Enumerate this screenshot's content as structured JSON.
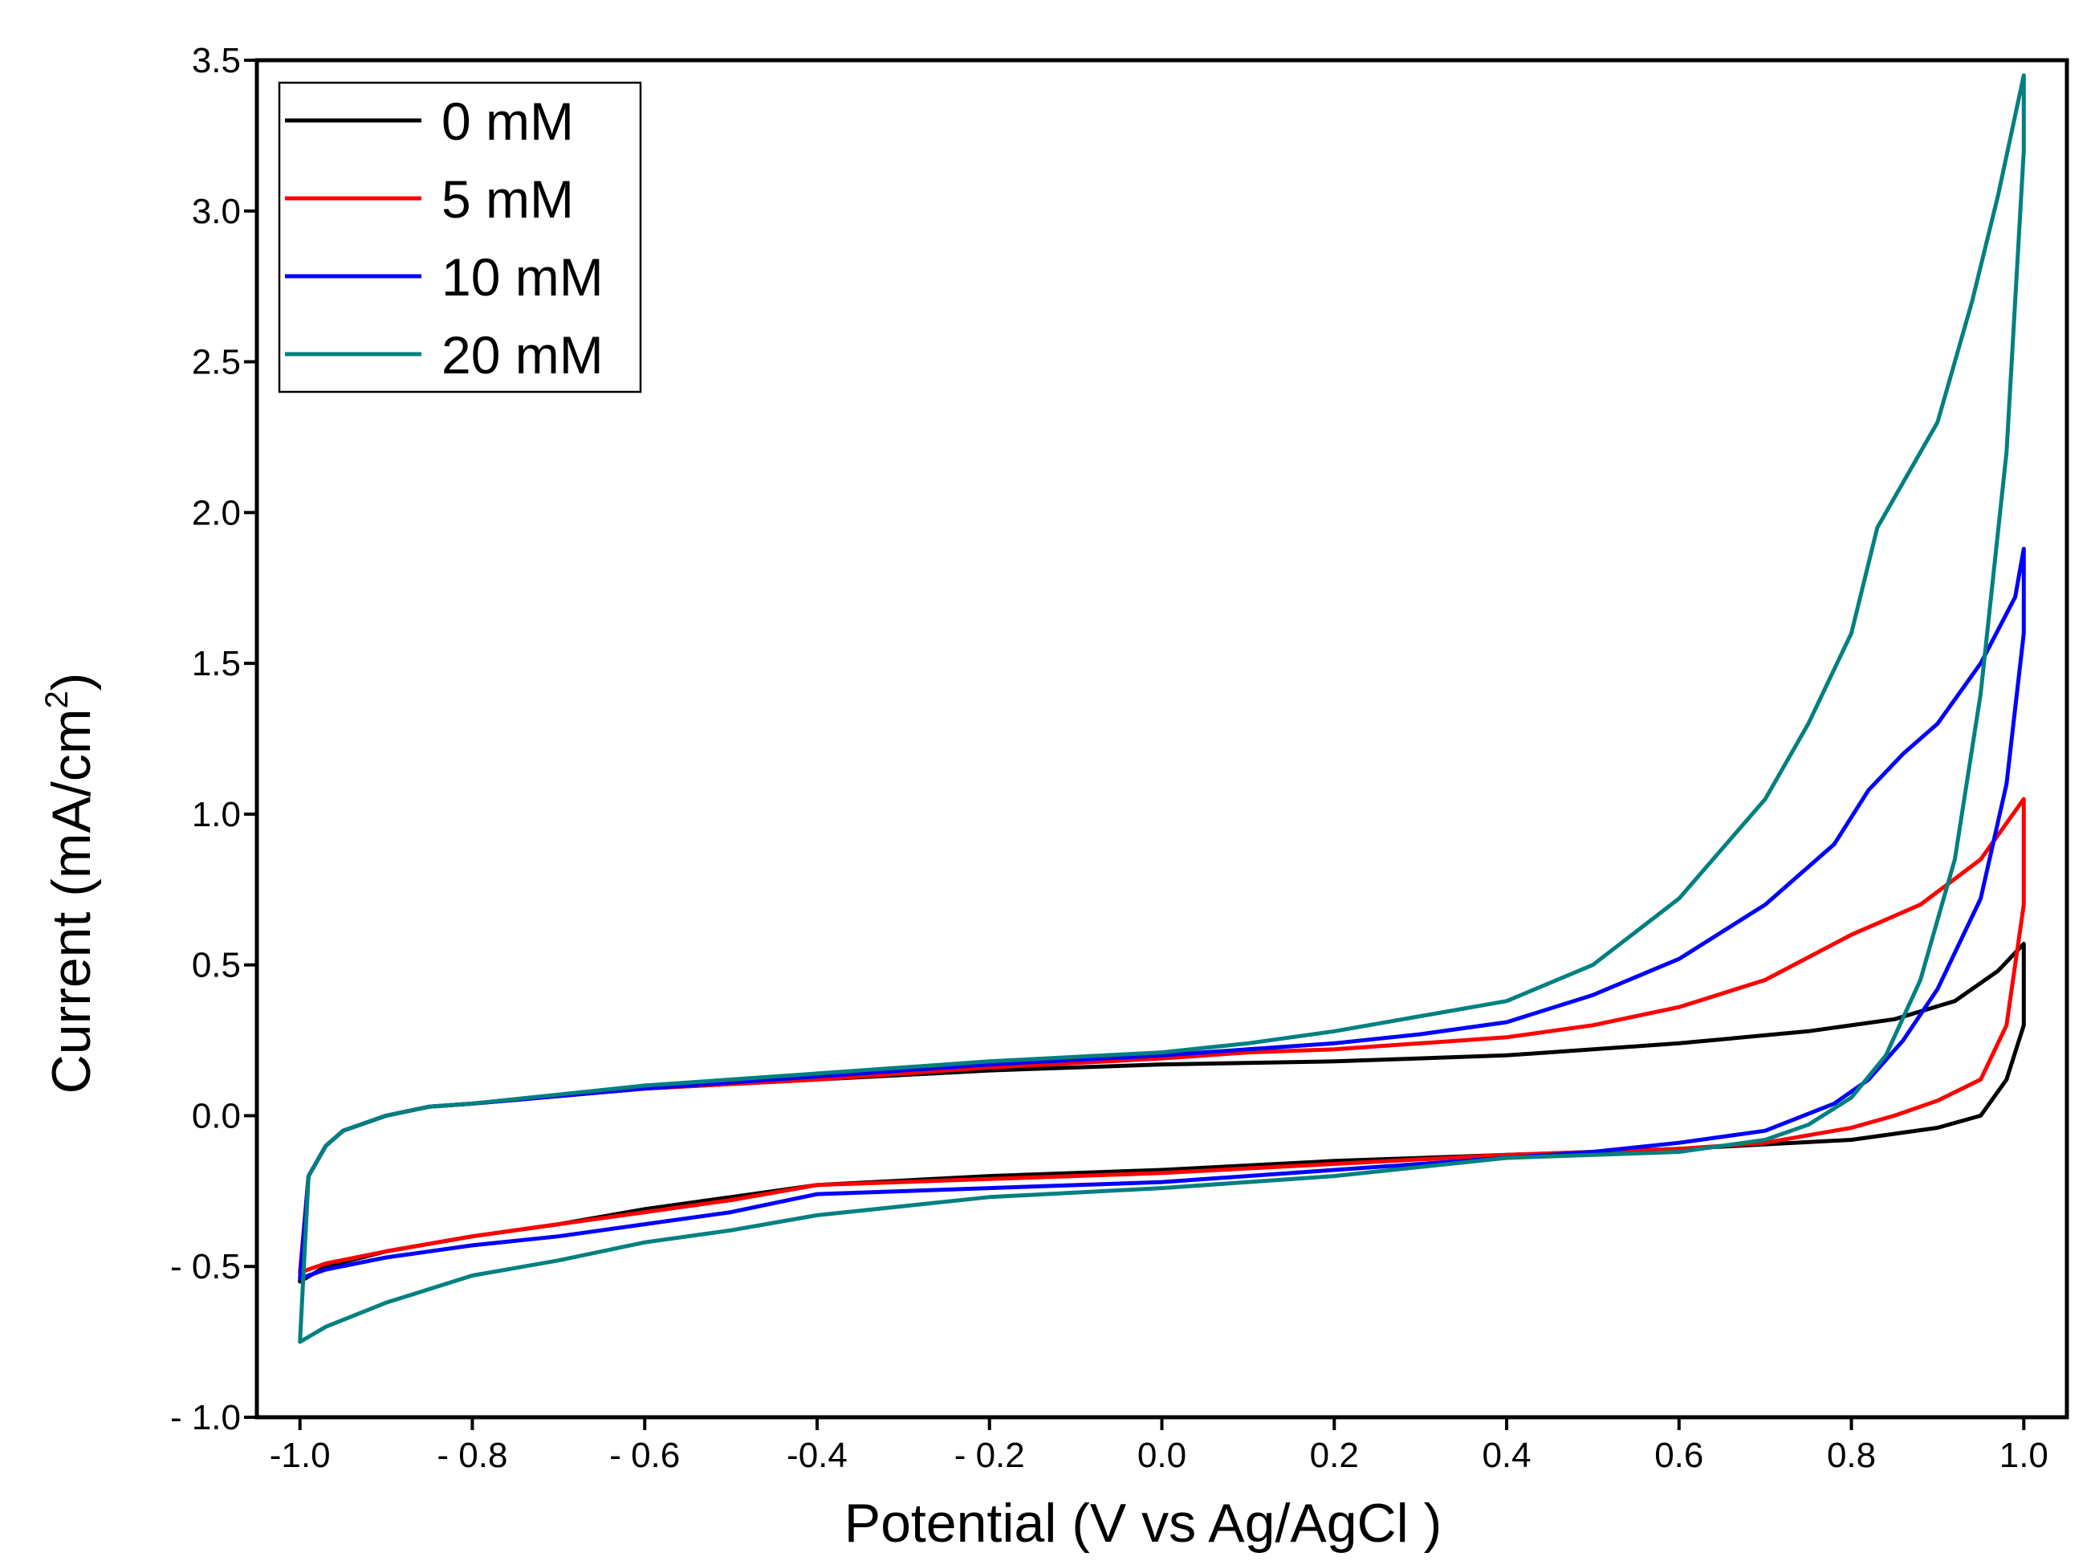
{
  "chart_data": {
    "type": "line",
    "title": "",
    "xlabel": "Potential (V vs Ag/AgCl )",
    "ylabel": "Current (mA/cm²)",
    "ylabel_main": "Current (mA/cm",
    "ylabel_sup": "2",
    "ylabel_close": ")",
    "xlim": [
      -1.05,
      1.05
    ],
    "ylim": [
      -1.0,
      3.5
    ],
    "xticks": [
      -1.0,
      -0.8,
      -0.6,
      -0.4,
      -0.2,
      0.0,
      0.2,
      0.4,
      0.6,
      0.8,
      1.0
    ],
    "xtick_labels": [
      "-1.0",
      "- 0.8",
      "- 0.6",
      "-0.4",
      "- 0.2",
      "0.0",
      "0.2",
      "0.4",
      "0.6",
      "0.8",
      "1.0"
    ],
    "yticks": [
      -1.0,
      -0.5,
      0.0,
      0.5,
      1.0,
      1.5,
      2.0,
      2.5,
      3.0,
      3.5
    ],
    "ytick_labels": [
      "- 1.0",
      "- 0.5",
      "0.0",
      "0.5",
      "1.0",
      "1.5",
      "2.0",
      "2.5",
      "3.0",
      "3.5"
    ],
    "grid": false,
    "legend_position": "top-left",
    "series": [
      {
        "name": "0 mM",
        "color": "#000000",
        "x": [
          -1.0,
          -0.99,
          -0.97,
          -0.95,
          -0.9,
          -0.85,
          -0.8,
          -0.6,
          -0.4,
          -0.2,
          0.0,
          0.2,
          0.4,
          0.6,
          0.75,
          0.85,
          0.92,
          0.97,
          1.0,
          1.0,
          0.98,
          0.95,
          0.9,
          0.8,
          0.6,
          0.4,
          0.2,
          0.0,
          -0.2,
          -0.4,
          -0.5,
          -0.6,
          -0.7,
          -0.8,
          -0.9,
          -0.97,
          -1.0
        ],
        "y": [
          -0.55,
          -0.2,
          -0.1,
          -0.05,
          0.0,
          0.03,
          0.04,
          0.09,
          0.12,
          0.15,
          0.17,
          0.18,
          0.2,
          0.24,
          0.28,
          0.32,
          0.38,
          0.48,
          0.57,
          0.3,
          0.12,
          0.0,
          -0.04,
          -0.08,
          -0.11,
          -0.13,
          -0.15,
          -0.18,
          -0.2,
          -0.23,
          -0.27,
          -0.31,
          -0.36,
          -0.4,
          -0.45,
          -0.5,
          -0.55
        ]
      },
      {
        "name": "5 mM",
        "color": "#ff0000",
        "x": [
          -1.0,
          -0.99,
          -0.97,
          -0.95,
          -0.9,
          -0.85,
          -0.8,
          -0.6,
          -0.4,
          -0.2,
          0.0,
          0.1,
          0.2,
          0.3,
          0.4,
          0.5,
          0.6,
          0.7,
          0.8,
          0.88,
          0.95,
          1.0,
          1.0,
          0.98,
          0.95,
          0.9,
          0.85,
          0.8,
          0.7,
          0.6,
          0.5,
          0.4,
          0.2,
          0.0,
          -0.2,
          -0.4,
          -0.5,
          -0.6,
          -0.7,
          -0.8,
          -0.9,
          -0.97,
          -1.0
        ],
        "y": [
          -0.52,
          -0.2,
          -0.1,
          -0.05,
          0.0,
          0.03,
          0.04,
          0.09,
          0.12,
          0.16,
          0.19,
          0.21,
          0.22,
          0.24,
          0.26,
          0.3,
          0.36,
          0.45,
          0.6,
          0.7,
          0.85,
          1.05,
          0.7,
          0.3,
          0.12,
          0.05,
          0.0,
          -0.04,
          -0.09,
          -0.11,
          -0.12,
          -0.13,
          -0.16,
          -0.19,
          -0.21,
          -0.23,
          -0.28,
          -0.32,
          -0.36,
          -0.4,
          -0.45,
          -0.49,
          -0.52
        ]
      },
      {
        "name": "10 mM",
        "color": "#0000ff",
        "x": [
          -1.0,
          -0.99,
          -0.97,
          -0.95,
          -0.9,
          -0.85,
          -0.8,
          -0.6,
          -0.4,
          -0.2,
          0.0,
          0.1,
          0.2,
          0.3,
          0.4,
          0.5,
          0.6,
          0.7,
          0.78,
          0.82,
          0.86,
          0.9,
          0.95,
          0.99,
          1.0,
          1.0,
          0.98,
          0.95,
          0.9,
          0.86,
          0.82,
          0.78,
          0.7,
          0.6,
          0.5,
          0.4,
          0.2,
          0.0,
          -0.2,
          -0.4,
          -0.5,
          -0.6,
          -0.7,
          -0.8,
          -0.9,
          -0.97,
          -1.0
        ],
        "y": [
          -0.54,
          -0.2,
          -0.1,
          -0.05,
          0.0,
          0.03,
          0.04,
          0.09,
          0.13,
          0.17,
          0.2,
          0.22,
          0.24,
          0.27,
          0.31,
          0.4,
          0.52,
          0.7,
          0.9,
          1.08,
          1.2,
          1.3,
          1.5,
          1.72,
          1.88,
          1.6,
          1.1,
          0.72,
          0.42,
          0.25,
          0.12,
          0.04,
          -0.05,
          -0.09,
          -0.12,
          -0.14,
          -0.18,
          -0.22,
          -0.24,
          -0.26,
          -0.32,
          -0.36,
          -0.4,
          -0.43,
          -0.47,
          -0.51,
          -0.54
        ]
      },
      {
        "name": "20 mM",
        "color": "#008080",
        "x": [
          -1.0,
          -0.99,
          -0.97,
          -0.95,
          -0.9,
          -0.85,
          -0.8,
          -0.6,
          -0.4,
          -0.2,
          0.0,
          0.1,
          0.2,
          0.3,
          0.4,
          0.5,
          0.6,
          0.7,
          0.75,
          0.8,
          0.83,
          0.86,
          0.9,
          0.94,
          0.97,
          1.0,
          1.0,
          0.98,
          0.95,
          0.92,
          0.88,
          0.84,
          0.8,
          0.75,
          0.7,
          0.6,
          0.5,
          0.4,
          0.3,
          0.2,
          0.0,
          -0.2,
          -0.3,
          -0.4,
          -0.5,
          -0.6,
          -0.7,
          -0.8,
          -0.9,
          -0.97,
          -1.0
        ],
        "y": [
          -0.75,
          -0.2,
          -0.1,
          -0.05,
          0.0,
          0.03,
          0.04,
          0.1,
          0.14,
          0.18,
          0.21,
          0.24,
          0.28,
          0.33,
          0.38,
          0.5,
          0.72,
          1.05,
          1.3,
          1.6,
          1.95,
          2.1,
          2.3,
          2.7,
          3.05,
          3.45,
          3.2,
          2.2,
          1.4,
          0.85,
          0.45,
          0.2,
          0.06,
          -0.03,
          -0.08,
          -0.12,
          -0.13,
          -0.14,
          -0.17,
          -0.2,
          -0.24,
          -0.27,
          -0.3,
          -0.33,
          -0.38,
          -0.42,
          -0.48,
          -0.53,
          -0.62,
          -0.7,
          -0.75
        ]
      }
    ]
  }
}
